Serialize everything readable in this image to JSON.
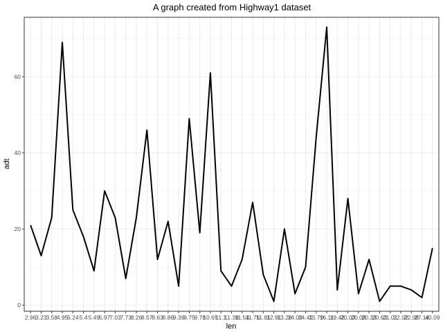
{
  "chart_data": {
    "type": "line",
    "title": "A graph created from Highway1 dataset",
    "xlabel": "len",
    "ylabel": "adt",
    "categories": [
      "2.96",
      "3.23",
      "3.58",
      "4.95",
      "5.24",
      "5.4",
      "5.49",
      "5.97",
      "7.03",
      "7.73",
      "8.26",
      "8.57",
      "8.63",
      "8.86",
      "9.39",
      "9.75",
      "9.78",
      "10.65",
      "11.1",
      "11.39",
      "11.54",
      "11.75",
      "11.81",
      "12.91",
      "13.28",
      "14.03",
      "14.41",
      "15.79",
      "16.11",
      "19.42",
      "20.03",
      "20.08",
      "20.33",
      "20.63",
      "21.01",
      "22.02",
      "22.08",
      "27.16",
      "40.09"
    ],
    "series": [
      {
        "values": [
          21,
          13,
          23,
          69,
          25,
          18,
          9,
          30,
          23,
          7,
          23,
          46,
          12,
          22,
          5,
          49,
          19,
          61,
          9,
          5,
          12,
          27,
          8,
          1,
          20,
          3,
          10,
          44,
          73,
          4,
          28,
          3,
          12,
          1,
          5,
          5,
          4,
          2,
          15
        ]
      }
    ],
    "yticks": [
      0,
      20,
      40,
      60
    ],
    "ylim": [
      -1.6,
      75.6
    ],
    "grid": true,
    "legend": "none",
    "colors": {
      "line": "#000000",
      "panel_border": "#333333",
      "grid_major": "#ebebeb",
      "grid_minor": "#f5f5f5",
      "tick_label": "#4d4d4d"
    }
  }
}
